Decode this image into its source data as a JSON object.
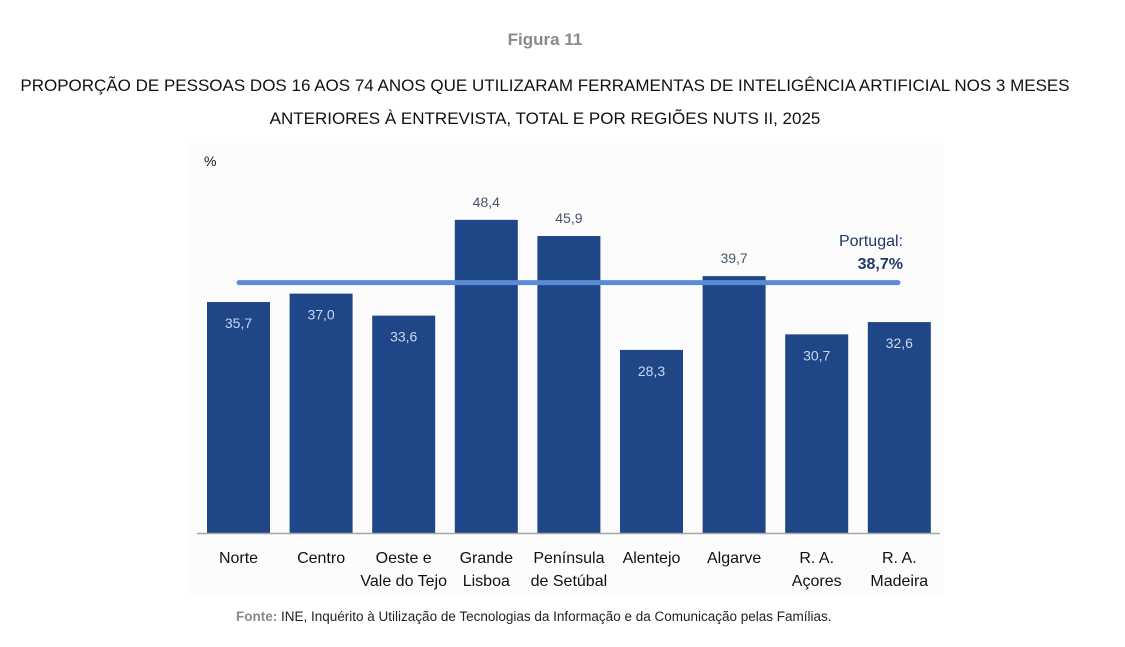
{
  "figure_label": "Figura 11",
  "title_line1": "PROPORÇÃO DE PESSOAS DOS 16 AOS 74 ANOS QUE UTILIZARAM FERRAMENTAS DE INTELIGÊNCIA ARTIFICIAL NOS 3 MESES",
  "title_line2": "ANTERIORES À ENTREVISTA, TOTAL E POR REGIÕES NUTS II, 2025",
  "source_label": "Fonte:",
  "source_text": " INE, Inquérito à Utilização de Tecnologias da Informação e da Comunicação pelas Famílias.",
  "colors": {
    "bar": "#1f4788",
    "reference_line": "#5b8bd6",
    "label_inside": "#c9d6ee",
    "label_outside": "#44546a",
    "portugal_text": "#1f3864"
  },
  "chart_data": {
    "type": "bar",
    "title": "PROPORÇÃO DE PESSOAS DOS 16 AOS 74 ANOS QUE UTILIZARAM FERRAMENTAS DE INTELIGÊNCIA ARTIFICIAL NOS 3 MESES ANTERIORES À ENTREVISTA, TOTAL E POR REGIÕES NUTS II, 2025",
    "ylabel": "%",
    "xlabel": "",
    "ylim": [
      0,
      55
    ],
    "grid": false,
    "categories": [
      [
        "Norte"
      ],
      [
        "Centro"
      ],
      [
        "Oeste e",
        "Vale do Tejo"
      ],
      [
        "Grande",
        "Lisboa"
      ],
      [
        "Península",
        "de Setúbal"
      ],
      [
        "Alentejo"
      ],
      [
        "Algarve"
      ],
      [
        "R. A.",
        "Açores"
      ],
      [
        "R. A.",
        "Madeira"
      ]
    ],
    "values": [
      35.7,
      37.0,
      33.6,
      48.4,
      45.9,
      28.3,
      39.7,
      30.7,
      32.6
    ],
    "value_labels": [
      "35,7",
      "37,0",
      "33,6",
      "48,4",
      "45,9",
      "28,3",
      "39,7",
      "30,7",
      "32,6"
    ],
    "label_outside": [
      false,
      false,
      false,
      true,
      true,
      false,
      true,
      false,
      false
    ],
    "reference": {
      "value": 38.7,
      "label_line1": "Portugal:",
      "label_line2": "38,7%"
    }
  }
}
